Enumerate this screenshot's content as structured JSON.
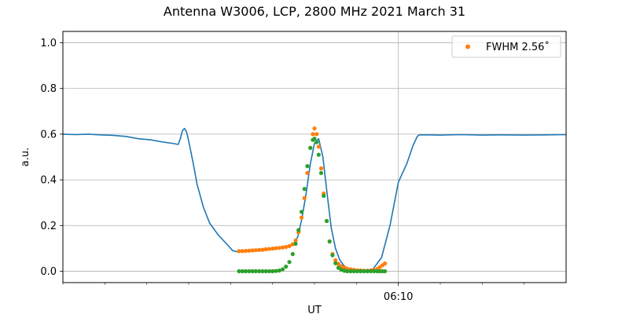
{
  "chart_data": {
    "type": "line",
    "title": "Antenna W3006, LCP, 2800 MHz 2021 March 31",
    "xlabel": "UT",
    "ylabel": "a.u.",
    "xlim": [
      0,
      12
    ],
    "ylim": [
      -0.05,
      1.05
    ],
    "x_unit": "minutes from start of plotted window",
    "y_ticks": [
      0.0,
      0.2,
      0.4,
      0.6,
      0.8,
      1.0
    ],
    "y_tick_labels": [
      "0.0",
      "0.2",
      "0.4",
      "0.6",
      "0.8",
      "1.0"
    ],
    "x_major_ticks": [
      {
        "x": 8.0,
        "label": "06:10"
      }
    ],
    "x_minor_ticks": [
      0,
      1,
      2,
      3,
      4,
      5,
      6,
      7,
      9,
      10,
      11
    ],
    "grid": true,
    "legend": {
      "position": "top-right",
      "entries": [
        {
          "label": "FWHM 2.56$^\\circ$",
          "display": "FWHM 2.56˚",
          "color": "#ff7f0e",
          "marker": "circle"
        }
      ]
    },
    "series": [
      {
        "name": "",
        "kind": "line",
        "color": "#1f77b4",
        "x": [
          0.0,
          0.3,
          0.6,
          0.9,
          1.2,
          1.5,
          1.8,
          2.1,
          2.4,
          2.6,
          2.75,
          2.8,
          2.85,
          2.9,
          2.95,
          3.0,
          3.1,
          3.2,
          3.35,
          3.5,
          3.7,
          3.9,
          4.05,
          4.15,
          4.3,
          4.6,
          4.9,
          5.2,
          5.5,
          5.6,
          5.7,
          5.8,
          5.9,
          6.0,
          6.1,
          6.2,
          6.3,
          6.4,
          6.5,
          6.6,
          6.7,
          6.8,
          7.0,
          7.2,
          7.4,
          7.6,
          7.8,
          8.0,
          8.2,
          8.35,
          8.45,
          8.5,
          8.7,
          9.0,
          9.5,
          10.0,
          10.5,
          11.0,
          11.5,
          12.0
        ],
        "y": [
          0.6,
          0.598,
          0.6,
          0.597,
          0.595,
          0.59,
          0.58,
          0.575,
          0.565,
          0.56,
          0.555,
          0.58,
          0.615,
          0.625,
          0.61,
          0.57,
          0.48,
          0.38,
          0.28,
          0.21,
          0.16,
          0.12,
          0.09,
          0.085,
          0.088,
          0.092,
          0.097,
          0.103,
          0.115,
          0.15,
          0.23,
          0.34,
          0.47,
          0.56,
          0.58,
          0.5,
          0.34,
          0.19,
          0.1,
          0.05,
          0.025,
          0.012,
          0.005,
          0.003,
          0.01,
          0.06,
          0.2,
          0.39,
          0.47,
          0.55,
          0.59,
          0.597,
          0.597,
          0.596,
          0.598,
          0.596,
          0.597,
          0.596,
          0.597,
          0.598
        ]
      },
      {
        "name": "FWHM 2.56˚",
        "kind": "points",
        "color": "#ff7f0e",
        "x": [
          4.2,
          4.28,
          4.36,
          4.44,
          4.52,
          4.6,
          4.68,
          4.76,
          4.84,
          4.92,
          5.0,
          5.08,
          5.16,
          5.24,
          5.32,
          5.4,
          5.48,
          5.55,
          5.62,
          5.69,
          5.76,
          5.83,
          5.9,
          5.96,
          6.0,
          6.05,
          6.1,
          6.16,
          6.22,
          6.29,
          6.36,
          6.43,
          6.5,
          6.57,
          6.64,
          6.71,
          6.78,
          6.86,
          6.94,
          7.02,
          7.1,
          7.18,
          7.26,
          7.34,
          7.42,
          7.5,
          7.56,
          7.62,
          7.68
        ],
        "y": [
          0.088,
          0.088,
          0.089,
          0.09,
          0.091,
          0.092,
          0.093,
          0.094,
          0.096,
          0.097,
          0.099,
          0.101,
          0.102,
          0.104,
          0.106,
          0.11,
          0.118,
          0.135,
          0.17,
          0.235,
          0.32,
          0.43,
          0.54,
          0.6,
          0.625,
          0.6,
          0.545,
          0.45,
          0.34,
          0.22,
          0.13,
          0.075,
          0.048,
          0.032,
          0.022,
          0.016,
          0.011,
          0.008,
          0.006,
          0.004,
          0.003,
          0.002,
          0.002,
          0.003,
          0.005,
          0.01,
          0.018,
          0.026,
          0.034
        ]
      },
      {
        "name": "",
        "kind": "points",
        "color": "#2ca02c",
        "x": [
          4.2,
          4.28,
          4.36,
          4.44,
          4.52,
          4.6,
          4.68,
          4.76,
          4.84,
          4.92,
          5.0,
          5.08,
          5.16,
          5.24,
          5.32,
          5.4,
          5.48,
          5.55,
          5.62,
          5.69,
          5.76,
          5.83,
          5.9,
          5.96,
          6.0,
          6.05,
          6.1,
          6.16,
          6.22,
          6.29,
          6.36,
          6.43,
          6.5,
          6.57,
          6.64,
          6.71,
          6.78,
          6.86,
          6.94,
          7.02,
          7.1,
          7.18,
          7.26,
          7.34,
          7.42,
          7.5,
          7.56,
          7.62,
          7.68
        ],
        "y": [
          0.0,
          0.0,
          0.0,
          0.0,
          0.0,
          0.0,
          0.0,
          0.0,
          0.0,
          0.0,
          0.0,
          0.001,
          0.003,
          0.008,
          0.02,
          0.04,
          0.075,
          0.12,
          0.18,
          0.26,
          0.36,
          0.46,
          0.54,
          0.575,
          0.58,
          0.565,
          0.51,
          0.43,
          0.33,
          0.22,
          0.13,
          0.07,
          0.035,
          0.015,
          0.006,
          0.002,
          0.0,
          0.0,
          0.0,
          0.0,
          0.0,
          0.0,
          0.0,
          0.0,
          0.0,
          0.0,
          0.0,
          0.0,
          0.0
        ]
      }
    ]
  }
}
